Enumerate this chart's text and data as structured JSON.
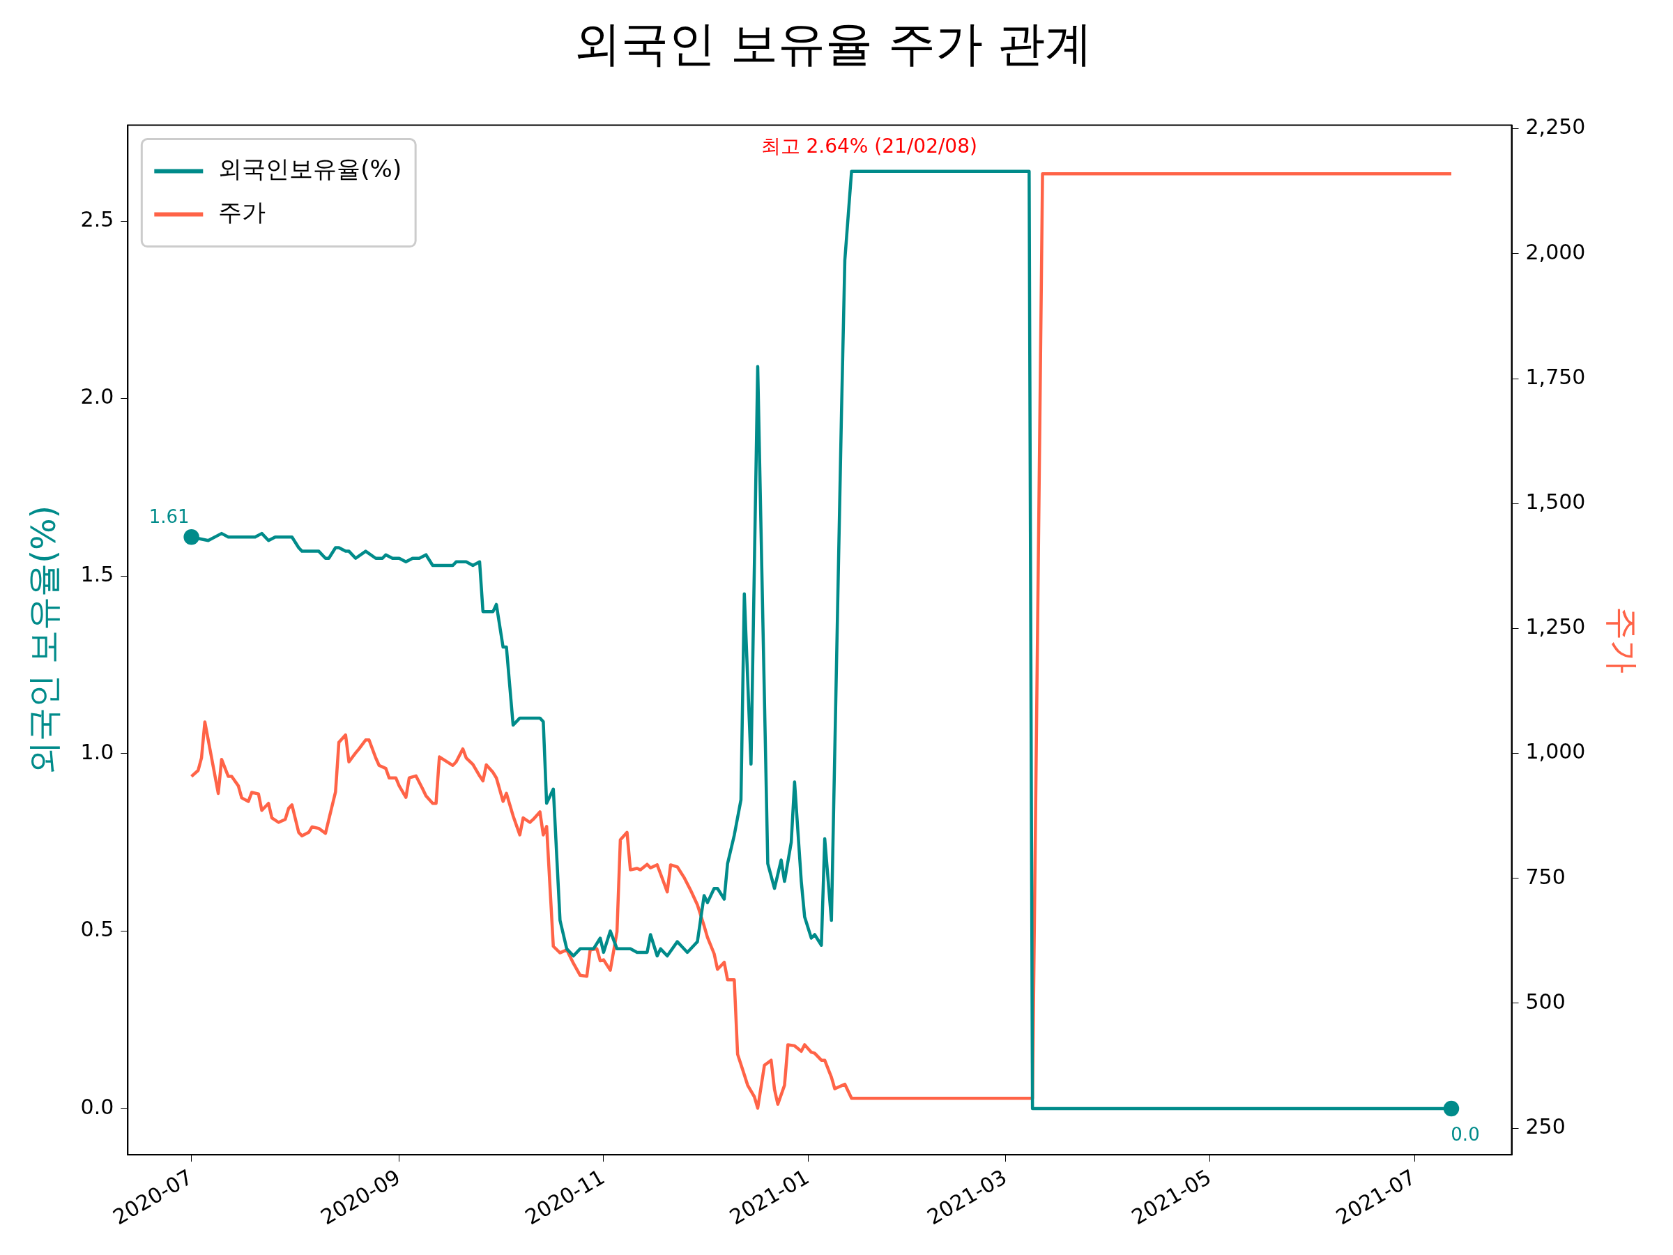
{
  "chart_data": {
    "type": "line",
    "title": "외국인 보유율 주가 관계",
    "ylabel": "외국인 보유율(%)",
    "y2label": "주가",
    "xlim": [
      "2020-06-12",
      "2021-07-30"
    ],
    "xticks": [
      "2020-07",
      "2020-09",
      "2020-11",
      "2021-01",
      "2021-03",
      "2021-05",
      "2021-07"
    ],
    "ylim": [
      -0.13,
      2.77
    ],
    "yticks": [
      {
        "value": 0,
        "label": "0.0"
      },
      {
        "value": 0.5,
        "label": "0.5"
      },
      {
        "value": 1,
        "label": "1.0"
      },
      {
        "value": 1.5,
        "label": "1.5"
      },
      {
        "value": 2,
        "label": "2.0"
      },
      {
        "value": 2.5,
        "label": "2.5"
      }
    ],
    "y2lim": [
      197,
      2257
    ],
    "y2ticks": [
      250,
      500,
      750,
      {
        "value": 1000,
        "label": "1,000"
      },
      {
        "value": 1250,
        "label": "1,250"
      },
      {
        "value": 1500,
        "label": "1,500"
      },
      {
        "value": 1750,
        "label": "1,750"
      },
      {
        "value": 2000,
        "label": "2,000"
      },
      {
        "value": 2250,
        "label": "2,250"
      }
    ],
    "grid": false,
    "legend": "top left",
    "annotations": [
      {
        "text": "1.61",
        "x": "2020-07-01",
        "y": 1.61
      },
      {
        "text": "0.0",
        "x": "2021-07-12",
        "y": 0.0
      },
      {
        "text": "최고 2.64% (21/02/08)",
        "x": "2021-02-08",
        "y": 2.64
      }
    ],
    "series": [
      {
        "name": "외국인보유율(%)",
        "color": "#008b8a",
        "x": [
          "2020-07-01",
          "2020-07-06",
          "2020-07-10",
          "2020-07-12",
          "2020-07-20",
          "2020-07-22",
          "2020-07-24",
          "2020-07-26",
          "2020-07-31",
          "2020-08-02",
          "2020-08-03",
          "2020-08-08",
          "2020-08-10",
          "2020-08-11",
          "2020-08-13",
          "2020-08-14",
          "2020-08-16",
          "2020-08-17",
          "2020-08-19",
          "2020-08-22",
          "2020-08-25",
          "2020-08-27",
          "2020-08-28",
          "2020-08-30",
          "2020-09-01",
          "2020-09-03",
          "2020-09-05",
          "2020-09-07",
          "2020-09-09",
          "2020-09-11",
          "2020-09-17",
          "2020-09-18",
          "2020-09-21",
          "2020-09-23",
          "2020-09-25",
          "2020-09-26",
          "2020-09-29",
          "2020-09-30",
          "2020-10-02",
          "2020-10-03",
          "2020-10-05",
          "2020-10-07",
          "2020-10-13",
          "2020-10-14",
          "2020-10-15",
          "2020-10-17",
          "2020-10-19",
          "2020-10-21",
          "2020-10-23",
          "2020-10-25",
          "2020-10-29",
          "2020-10-31",
          "2020-11-01",
          "2020-11-03",
          "2020-11-05",
          "2020-11-09",
          "2020-11-11",
          "2020-11-14",
          "2020-11-15",
          "2020-11-17",
          "2020-11-18",
          "2020-11-20",
          "2020-11-23",
          "2020-11-24",
          "2020-11-26",
          "2020-11-28",
          "2020-11-29",
          "2020-12-01",
          "2020-12-02",
          "2020-12-04",
          "2020-12-05",
          "2020-12-07",
          "2020-12-08",
          "2020-12-10",
          "2020-12-12",
          "2020-12-13",
          "2020-12-15",
          "2020-12-17",
          "2020-12-20",
          "2020-12-22",
          "2020-12-24",
          "2020-12-25",
          "2020-12-27",
          "2020-12-28",
          "2020-12-30",
          "2020-12-31",
          "2021-01-02",
          "2021-01-03",
          "2021-01-05",
          "2021-01-06",
          "2021-01-08",
          "2021-01-11",
          "2021-01-12",
          "2021-01-14",
          "2021-03-08",
          "2021-03-09",
          "2021-07-12"
        ],
        "values": [
          1.61,
          1.6,
          1.62,
          1.61,
          1.61,
          1.62,
          1.6,
          1.61,
          1.61,
          1.58,
          1.57,
          1.57,
          1.55,
          1.55,
          1.58,
          1.58,
          1.57,
          1.57,
          1.55,
          1.57,
          1.55,
          1.55,
          1.56,
          1.55,
          1.55,
          1.54,
          1.55,
          1.55,
          1.56,
          1.53,
          1.53,
          1.54,
          1.54,
          1.53,
          1.54,
          1.4,
          1.4,
          1.42,
          1.3,
          1.3,
          1.08,
          1.1,
          1.1,
          1.09,
          0.86,
          0.9,
          0.53,
          0.45,
          0.43,
          0.45,
          0.45,
          0.48,
          0.44,
          0.5,
          0.45,
          0.45,
          0.44,
          0.44,
          0.49,
          0.43,
          0.45,
          0.43,
          0.47,
          0.46,
          0.44,
          0.46,
          0.47,
          0.6,
          0.58,
          0.62,
          0.62,
          0.59,
          0.69,
          0.77,
          0.87,
          1.45,
          0.97,
          2.09,
          0.69,
          0.62,
          0.7,
          0.64,
          0.75,
          0.92,
          0.64,
          0.54,
          0.48,
          0.49,
          0.46,
          0.76,
          0.53,
          1.96,
          2.39,
          2.64,
          2.64,
          0.0,
          0.0
        ]
      },
      {
        "name": "주가",
        "color": "#ff6347",
        "axis": "y2",
        "x": [
          "2020-07-01",
          "2020-07-03",
          "2020-07-04",
          "2020-07-05",
          "2020-07-09",
          "2020-07-10",
          "2020-07-12",
          "2020-07-13",
          "2020-07-15",
          "2020-07-16",
          "2020-07-18",
          "2020-07-19",
          "2020-07-21",
          "2020-07-22",
          "2020-07-24",
          "2020-07-25",
          "2020-07-27",
          "2020-07-29",
          "2020-07-30",
          "2020-07-31",
          "2020-08-02",
          "2020-08-03",
          "2020-08-05",
          "2020-08-06",
          "2020-08-08",
          "2020-08-10",
          "2020-08-11",
          "2020-08-13",
          "2020-08-14",
          "2020-08-16",
          "2020-08-17",
          "2020-08-19",
          "2020-08-20",
          "2020-08-22",
          "2020-08-23",
          "2020-08-25",
          "2020-08-26",
          "2020-08-28",
          "2020-08-29",
          "2020-08-31",
          "2020-09-01",
          "2020-09-03",
          "2020-09-04",
          "2020-09-06",
          "2020-09-08",
          "2020-09-09",
          "2020-09-11",
          "2020-09-12",
          "2020-09-13",
          "2020-09-17",
          "2020-09-18",
          "2020-09-20",
          "2020-09-21",
          "2020-09-23",
          "2020-09-25",
          "2020-09-26",
          "2020-09-27",
          "2020-09-29",
          "2020-09-30",
          "2020-10-02",
          "2020-10-03",
          "2020-10-05",
          "2020-10-07",
          "2020-10-08",
          "2020-10-10",
          "2020-10-11",
          "2020-10-13",
          "2020-10-14",
          "2020-10-15",
          "2020-10-17",
          "2020-10-19",
          "2020-10-21",
          "2020-10-23",
          "2020-10-25",
          "2020-10-27",
          "2020-10-28",
          "2020-10-30",
          "2020-10-31",
          "2020-11-01",
          "2020-11-03",
          "2020-11-05",
          "2020-11-06",
          "2020-11-08",
          "2020-11-09",
          "2020-11-11",
          "2020-11-12",
          "2020-11-14",
          "2020-11-15",
          "2020-11-17",
          "2020-11-18",
          "2020-11-20",
          "2020-11-21",
          "2020-11-23",
          "2020-11-25",
          "2020-11-27",
          "2020-11-29",
          "2020-12-01",
          "2020-12-02",
          "2020-12-04",
          "2020-12-05",
          "2020-12-07",
          "2020-12-08",
          "2020-12-10",
          "2020-12-11",
          "2020-12-13",
          "2020-12-14",
          "2020-12-16",
          "2020-12-17",
          "2020-12-19",
          "2020-12-21",
          "2020-12-22",
          "2020-12-23",
          "2020-12-25",
          "2020-12-26",
          "2020-12-28",
          "2020-12-30",
          "2020-12-31",
          "2021-01-02",
          "2021-01-03",
          "2021-01-05",
          "2021-01-06",
          "2021-01-08",
          "2021-01-09",
          "2021-01-12",
          "2021-01-14",
          "2021-03-09",
          "2021-03-12",
          "2021-07-12"
        ],
        "values": [
          954,
          966,
          991,
          1063,
          920,
          988,
          954,
          954,
          935,
          911,
          904,
          922,
          919,
          886,
          900,
          871,
          862,
          868,
          890,
          897,
          842,
          835,
          842,
          853,
          850,
          840,
          868,
          923,
          1022,
          1037,
          983,
          1001,
          1009,
          1027,
          1027,
          991,
          976,
          970,
          951,
          951,
          935,
          912,
          951,
          955,
          929,
          915,
          900,
          900,
          993,
          976,
          983,
          1009,
          991,
          978,
          955,
          945,
          977,
          962,
          951,
          904,
          920,
          875,
          837,
          871,
          862,
          868,
          883,
          837,
          854,
          614,
          601,
          607,
          580,
          556,
          554,
          607,
          609,
          585,
          587,
          566,
          643,
          827,
          842,
          767,
          770,
          767,
          778,
          771,
          777,
          759,
          723,
          777,
          773,
          752,
          726,
          697,
          655,
          632,
          599,
          568,
          582,
          547,
          547,
          398,
          357,
          336,
          313,
          290,
          376,
          386,
          328,
          298,
          336,
          417,
          415,
          404,
          417,
          402,
          400,
          386,
          386,
          352,
          329,
          338,
          310,
          310,
          2160,
          2160
        ]
      },
      {
        "type": "scatter",
        "color": "#008b8a",
        "marker": "circle",
        "x": [
          "2020-07-01",
          "2021-07-12"
        ],
        "values": [
          1.61,
          0.0
        ]
      }
    ]
  }
}
